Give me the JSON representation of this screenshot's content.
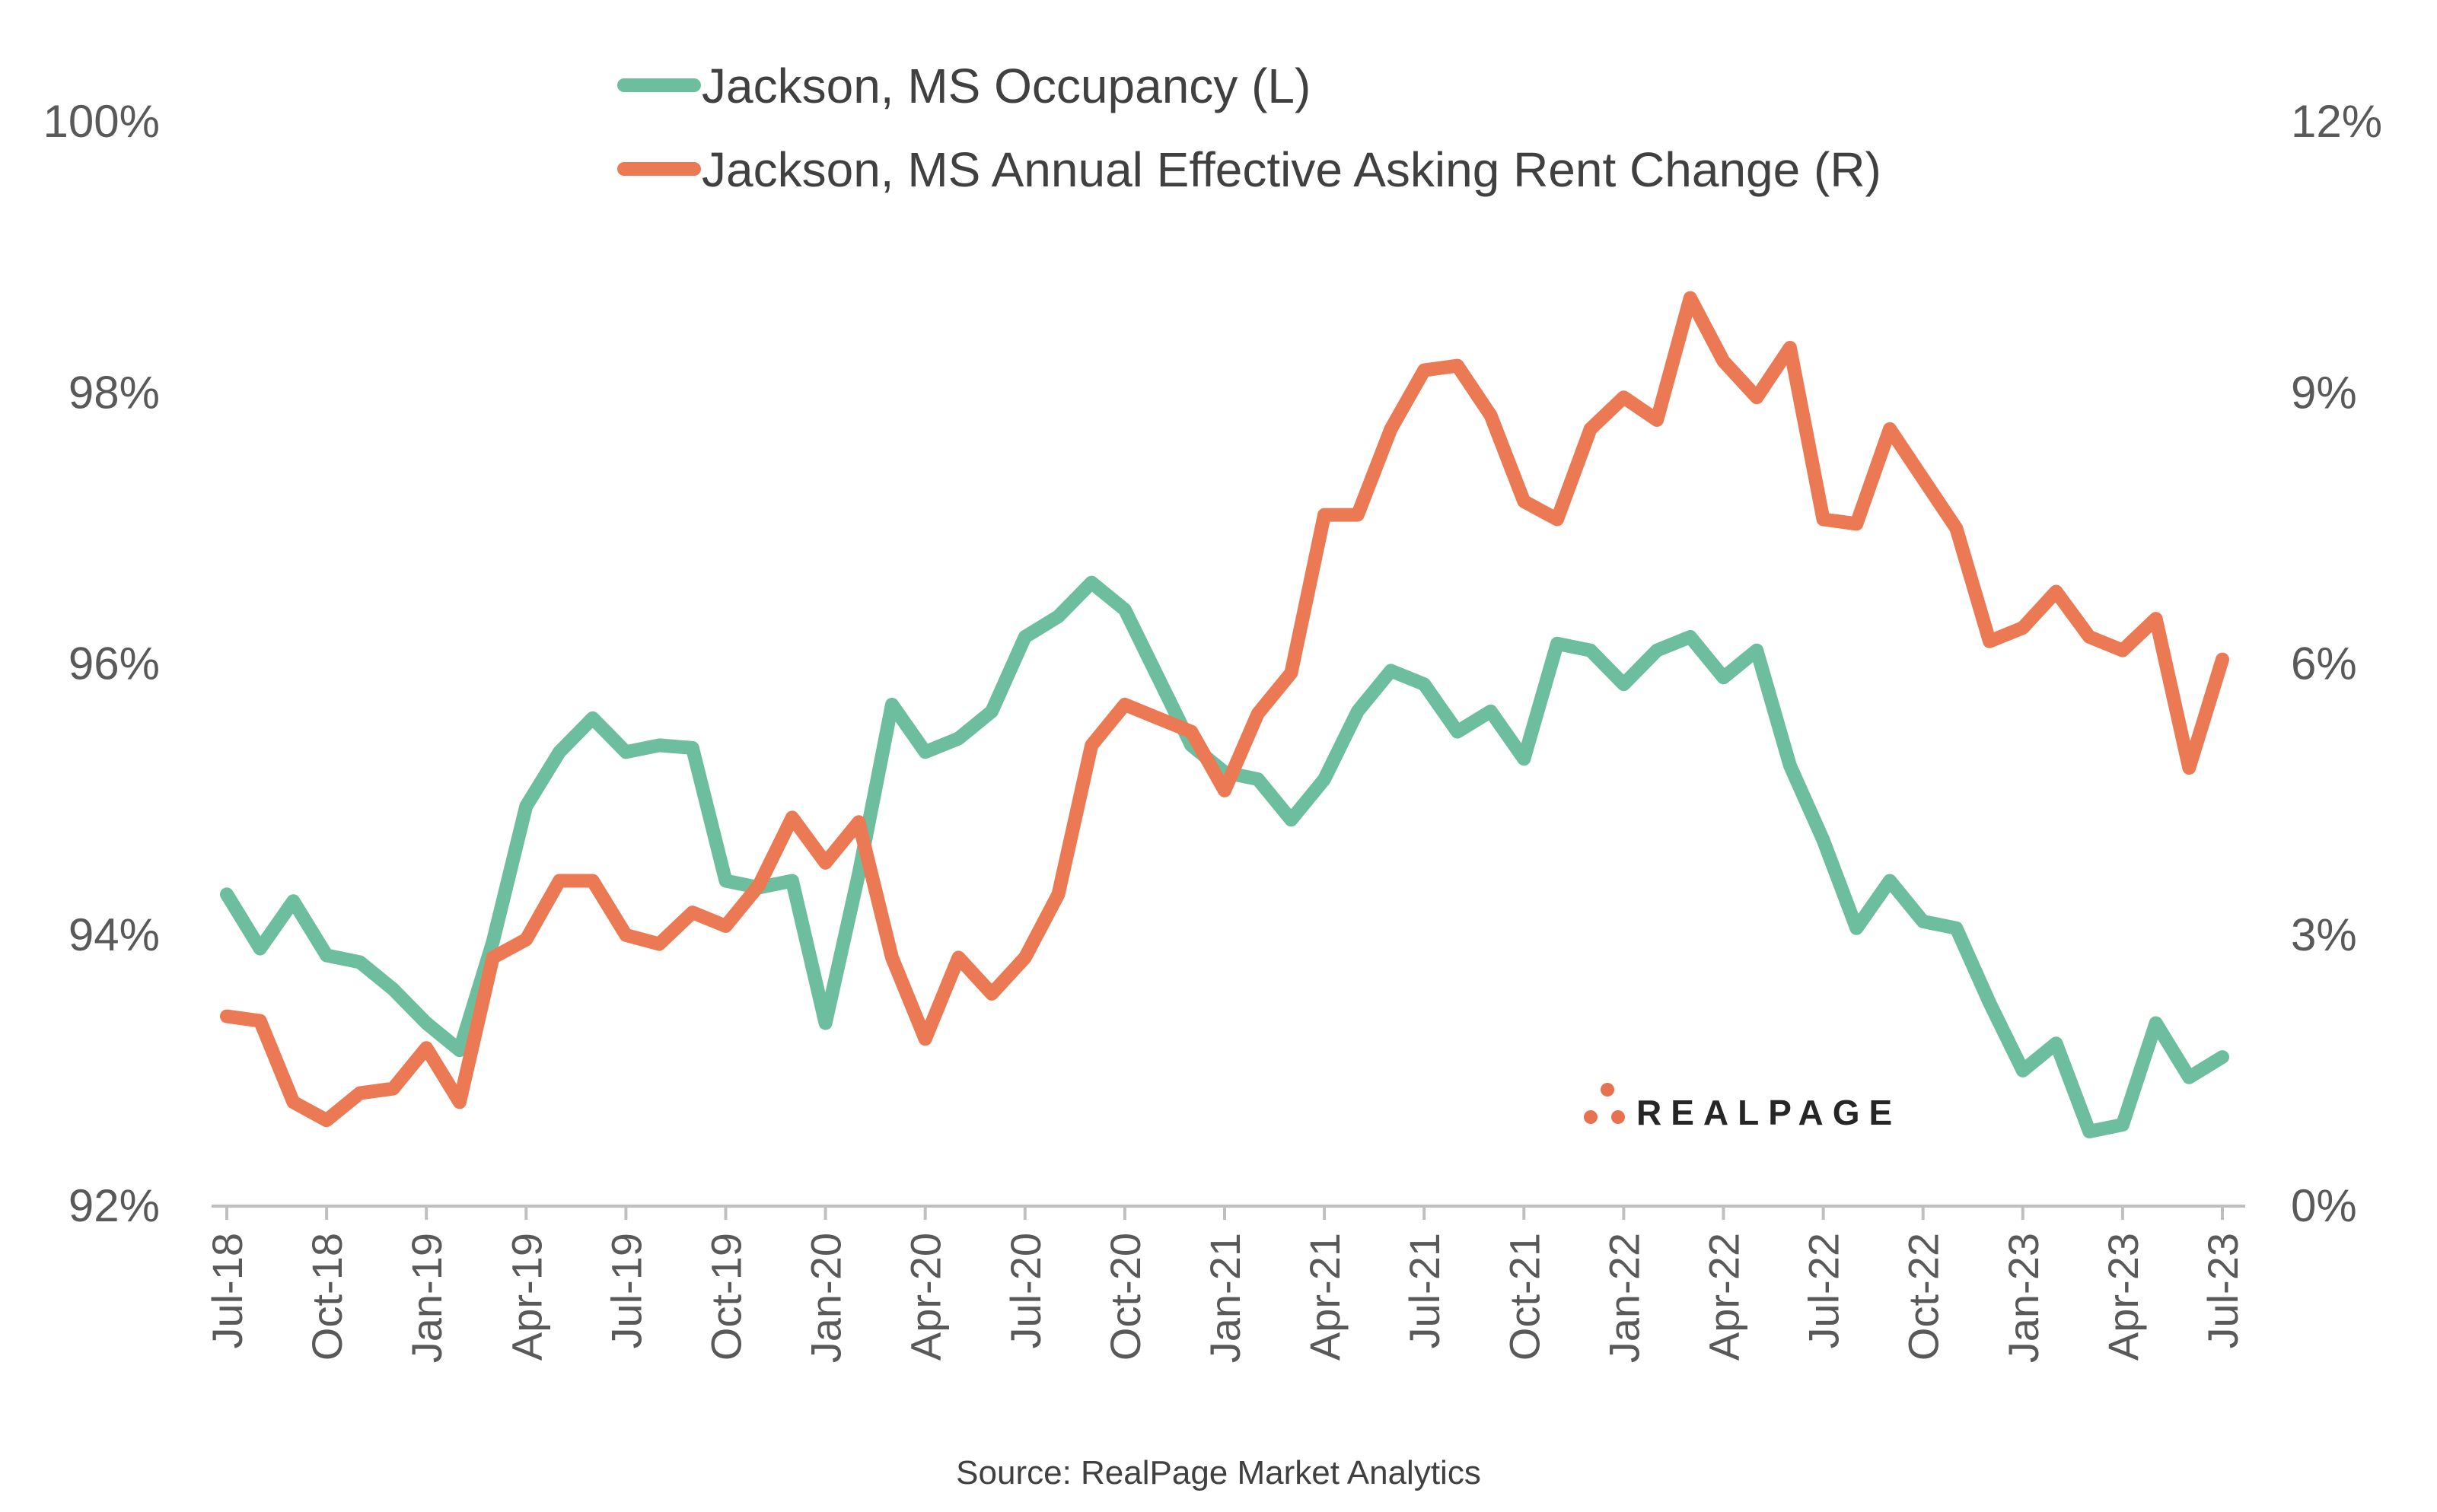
{
  "source": "Source: RealPage Market Analytics",
  "brand": {
    "name": "REALPAGE",
    "dot_color": "#E8714F"
  },
  "chart_data": {
    "type": "line",
    "title": "",
    "x": [
      "Jul-18",
      "Aug-18",
      "Sep-18",
      "Oct-18",
      "Nov-18",
      "Dec-18",
      "Jan-19",
      "Feb-19",
      "Mar-19",
      "Apr-19",
      "May-19",
      "Jun-19",
      "Jul-19",
      "Aug-19",
      "Sep-19",
      "Oct-19",
      "Nov-19",
      "Dec-19",
      "Jan-20",
      "Feb-20",
      "Mar-20",
      "Apr-20",
      "May-20",
      "Jun-20",
      "Jul-20",
      "Aug-20",
      "Sep-20",
      "Oct-20",
      "Nov-20",
      "Dec-20",
      "Jan-21",
      "Feb-21",
      "Mar-21",
      "Apr-21",
      "May-21",
      "Jun-21",
      "Jul-21",
      "Aug-21",
      "Sep-21",
      "Oct-21",
      "Nov-21",
      "Dec-21",
      "Jan-22",
      "Feb-22",
      "Mar-22",
      "Apr-22",
      "May-22",
      "Jun-22",
      "Jul-22",
      "Aug-22",
      "Sep-22",
      "Oct-22",
      "Nov-22",
      "Dec-22",
      "Jan-23",
      "Feb-23",
      "Mar-23",
      "Apr-23",
      "May-23",
      "Jun-23",
      "Jul-23"
    ],
    "x_tick_labels": [
      "Jul-18",
      "Oct-18",
      "Jan-19",
      "Apr-19",
      "Jul-19",
      "Oct-19",
      "Jan-20",
      "Apr-20",
      "Jul-20",
      "Oct-20",
      "Jan-21",
      "Apr-21",
      "Jul-21",
      "Oct-21",
      "Jan-22",
      "Apr-22",
      "Jul-22",
      "Oct-22",
      "Jan-23",
      "Apr-23",
      "Jul-23"
    ],
    "y_left": {
      "lim": [
        0.92,
        1.0
      ],
      "ticks": [
        "92%",
        "94%",
        "96%",
        "98%",
        "100%"
      ],
      "tick_values": [
        0.92,
        0.94,
        0.96,
        0.98,
        1.0
      ]
    },
    "y_right": {
      "lim": [
        0,
        12
      ],
      "ticks": [
        "0%",
        "3%",
        "6%",
        "9%",
        "12%"
      ],
      "tick_values": [
        0,
        3,
        6,
        9,
        12
      ]
    },
    "grid": false,
    "legend": "top-center",
    "series": [
      {
        "name": "Jackson, MS Occupancy (L)",
        "axis": "left",
        "color": "#6DBE9E",
        "values": [
          94.3,
          93.9,
          94.25,
          93.85,
          93.8,
          93.6,
          93.35,
          93.15,
          93.95,
          94.95,
          95.35,
          95.6,
          95.35,
          95.4,
          95.38,
          94.4,
          94.35,
          94.4,
          93.35,
          94.45,
          95.7,
          95.35,
          95.45,
          95.65,
          96.2,
          96.35,
          96.6,
          96.4,
          95.9,
          95.4,
          95.2,
          95.15,
          94.85,
          95.15,
          95.65,
          95.95,
          95.85,
          95.5,
          95.65,
          95.3,
          96.15,
          96.1,
          95.85,
          96.1,
          96.2,
          95.9,
          96.1,
          95.25,
          94.7,
          94.05,
          94.4,
          94.1,
          94.05,
          93.5,
          93.0,
          93.2,
          92.55,
          92.6,
          93.35,
          92.95,
          93.1
        ]
      },
      {
        "name": "Jackson, MS Annual Effective Asking Rent Change (R)",
        "axis": "right",
        "color": "#EB7A54",
        "values": [
          2.1,
          2.05,
          1.15,
          0.95,
          1.25,
          1.3,
          1.75,
          1.15,
          2.75,
          2.95,
          3.6,
          3.6,
          3.0,
          2.9,
          3.25,
          3.1,
          3.55,
          4.3,
          3.8,
          4.25,
          2.75,
          1.85,
          2.75,
          2.35,
          2.75,
          3.45,
          5.1,
          5.55,
          5.4,
          5.25,
          4.6,
          5.45,
          5.9,
          7.65,
          7.65,
          8.6,
          9.25,
          9.3,
          8.75,
          7.8,
          7.6,
          8.6,
          8.95,
          8.7,
          10.05,
          9.35,
          8.95,
          9.5,
          7.6,
          7.55,
          8.6,
          8.05,
          7.5,
          6.25,
          6.4,
          6.8,
          6.3,
          6.15,
          6.5,
          4.85,
          6.05
        ]
      }
    ]
  }
}
